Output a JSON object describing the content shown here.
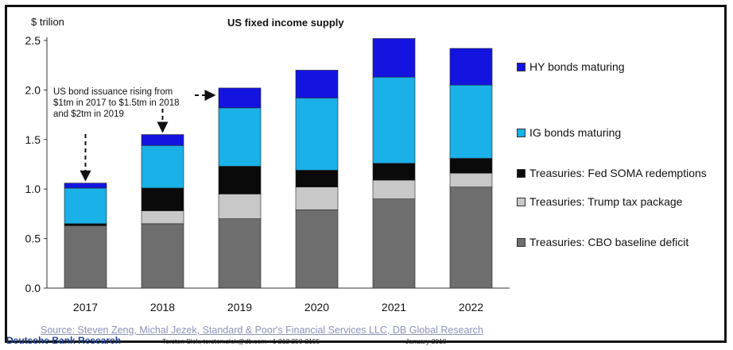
{
  "chart_data": {
    "type": "bar",
    "stacked": true,
    "title": "US fixed income supply",
    "ylabel": "$ trilion",
    "ylim": [
      0,
      2.5
    ],
    "yticks": [
      "0.0",
      "0.5",
      "1.0",
      "1.5",
      "2.0",
      "2.5"
    ],
    "categories": [
      "2017",
      "2018",
      "2019",
      "2020",
      "2021",
      "2022"
    ],
    "series": [
      {
        "name": "Treasuries: CBO baseline deficit",
        "color": "#6e6e6e",
        "values": [
          0.63,
          0.65,
          0.7,
          0.79,
          0.9,
          1.02
        ]
      },
      {
        "name": "Treasuries: Trump tax package",
        "color": "#c8c8c8",
        "values": [
          0.0,
          0.13,
          0.25,
          0.23,
          0.19,
          0.14
        ]
      },
      {
        "name": "Treasuries: Fed SOMA redemptions",
        "color": "#0a0a0a",
        "values": [
          0.02,
          0.23,
          0.28,
          0.17,
          0.17,
          0.15
        ]
      },
      {
        "name": "IG bonds maturing",
        "color": "#1ab0e8",
        "values": [
          0.36,
          0.43,
          0.59,
          0.73,
          0.87,
          0.74
        ]
      },
      {
        "name": "HY bonds maturing",
        "color": "#1414e0",
        "values": [
          0.05,
          0.11,
          0.2,
          0.28,
          0.39,
          0.37
        ]
      }
    ],
    "legend_order": [
      "HY bonds maturing",
      "IG bonds maturing",
      "Treasuries: Fed SOMA redemptions",
      "Treasuries: Trump tax package",
      "Treasuries: CBO baseline deficit"
    ],
    "annotation": {
      "lines": [
        "US bond issuance rising from",
        "$1tm in 2017 to $1.5tm in 2018",
        "and $2tm in 2019"
      ]
    },
    "grid": false,
    "legend_position": "right"
  },
  "source": "Source:  Steven Zeng, Michal Jezek, Standard  & Poor's Financial Services LLC, DB Global Research",
  "footer": {
    "brand": "Deutsche Bank Research",
    "contact": "Torsten Slok, torsten.slok@db.com  +1 212 250-2155",
    "date": "January 2018"
  }
}
